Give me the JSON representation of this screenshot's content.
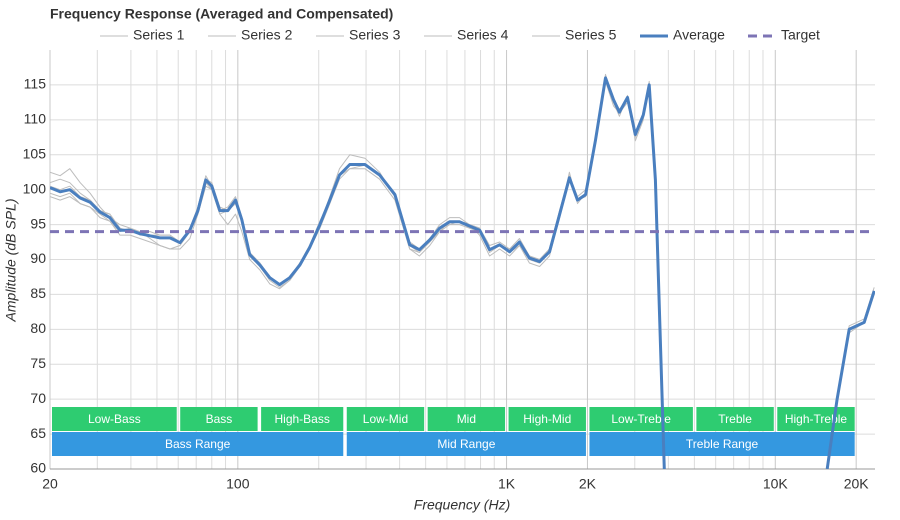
{
  "chart_data": {
    "type": "line",
    "title": "Frequency Response (Averaged and Compensated)",
    "x_label": "Frequency (Hz)",
    "y_label": "Amplitude (dB SPL)",
    "log_x": true,
    "grid": true,
    "xlim": [
      20,
      23500
    ],
    "ylim": [
      60,
      120
    ],
    "xticks": [
      20,
      100,
      {
        "value": 1000,
        "label": "1K"
      },
      {
        "value": 2000,
        "label": "2K"
      },
      {
        "value": 10000,
        "label": "10K"
      },
      {
        "value": 20000,
        "label": "20K"
      }
    ],
    "xgrid_minor": [
      30,
      40,
      50,
      60,
      70,
      80,
      90,
      200,
      300,
      400,
      500,
      600,
      700,
      800,
      900,
      3000,
      4000,
      5000,
      6000,
      7000,
      8000,
      9000
    ],
    "yticks": [
      60,
      65,
      70,
      75,
      80,
      85,
      90,
      95,
      100,
      105,
      110,
      115
    ],
    "x": [
      20,
      21.8,
      23.7,
      25.9,
      28.2,
      30.7,
      33.4,
      36.4,
      39.7,
      43.2,
      47.1,
      51.3,
      55.9,
      60.9,
      66.3,
      71,
      76,
      80,
      85.7,
      91.8,
      98,
      103.5,
      110.7,
      120.8,
      131.5,
      143,
      156,
      170,
      185,
      202,
      220,
      239,
      261,
      297,
      337,
      384,
      436,
      474,
      518,
      564,
      614,
      668,
      728,
      794,
      865,
      942,
      1026,
      1117,
      1216,
      1327,
      1445,
      1574,
      1714,
      1837,
      1968,
      2143,
      2334,
      2500,
      2630,
      2818,
      3013,
      3228,
      3396,
      3581,
      3864,
      8000,
      15600,
      16980,
      18840,
      21430,
      23340
    ],
    "series": [
      {
        "name": "Series 1",
        "color": "#bdbdbd",
        "width": 1,
        "values": [
          102.5,
          102,
          103,
          101,
          99.5,
          97.5,
          96,
          95,
          94.5,
          94,
          93,
          92,
          91.5,
          91.5,
          93,
          96.5,
          101,
          100,
          96.5,
          95,
          96.5,
          94,
          90,
          88.5,
          86.5,
          85.8,
          87,
          89,
          91.5,
          95,
          99,
          103,
          105,
          104.5,
          102.5,
          99,
          91.5,
          90.5,
          92,
          94,
          95.5,
          95.5,
          95,
          93.5,
          90.5,
          91.5,
          90.5,
          92,
          89.5,
          89,
          90.5,
          96,
          102.5,
          98,
          99.5,
          107.5,
          116.5,
          112.5,
          110.5,
          113.5,
          107,
          110,
          115.5,
          101,
          60,
          null,
          60,
          70,
          80,
          81,
          85.5
        ]
      },
      {
        "name": "Series 2",
        "color": "#bdbdbd",
        "width": 1,
        "values": [
          99,
          98.5,
          99,
          98,
          97.5,
          96,
          95.5,
          93.5,
          93.5,
          93,
          92.5,
          92,
          91.5,
          92,
          94,
          97.5,
          102,
          100.5,
          97,
          97.5,
          99,
          96,
          91,
          89.5,
          87.5,
          86.5,
          87.5,
          89.5,
          92,
          95.5,
          98.5,
          102,
          103,
          103,
          101.5,
          98.5,
          91.5,
          91,
          93,
          95,
          96,
          96,
          95,
          94.5,
          92,
          92.5,
          91.5,
          93,
          90.5,
          90,
          91.5,
          97,
          102,
          99,
          100,
          107,
          115.5,
          112,
          111,
          113,
          108,
          110.5,
          114.5,
          101.5,
          60,
          null,
          60,
          70.5,
          80.5,
          81.5,
          86
        ]
      },
      {
        "name": "Series 3",
        "color": "#bdbdbd",
        "width": 1,
        "values": [
          101,
          101.5,
          101,
          99.5,
          98.5,
          97,
          96.5,
          94.5,
          94,
          94,
          94,
          93.5,
          93.5,
          92.5,
          94.5,
          97,
          101,
          100.5,
          97.5,
          97,
          98,
          95.5,
          90.5,
          89,
          87,
          86,
          87,
          89,
          91.5,
          94.5,
          98,
          102,
          103.5,
          103.5,
          102,
          99.5,
          92.5,
          91.5,
          93,
          94.5,
          95,
          95,
          94.5,
          94,
          91,
          92,
          91,
          92.5,
          90,
          89.5,
          91,
          96.5,
          101.5,
          98.5,
          99,
          107,
          116,
          113,
          111,
          113,
          108,
          110.5,
          115,
          101,
          60,
          null,
          60,
          69.5,
          79.5,
          81,
          85
        ]
      },
      {
        "name": "Series 4",
        "color": "#bdbdbd",
        "width": 1,
        "values": [
          99.5,
          99,
          99.5,
          98,
          97.5,
          96.5,
          95.5,
          94,
          94.5,
          93.5,
          93.5,
          93,
          93,
          92.5,
          94,
          96.5,
          100.5,
          100,
          96.5,
          97,
          98,
          95.5,
          91,
          89,
          87.5,
          86.5,
          87.5,
          89,
          91.5,
          94.5,
          98,
          101.5,
          103,
          103.5,
          102,
          99,
          92,
          91,
          92.5,
          94,
          95,
          95.5,
          94.5,
          94,
          91.5,
          92,
          91,
          92,
          90,
          89.5,
          91,
          96,
          101.5,
          98.5,
          99,
          106.5,
          115.5,
          112.5,
          111,
          112.5,
          107.5,
          110.5,
          115,
          101.5,
          60,
          null,
          60,
          70,
          80,
          81,
          85.5
        ]
      },
      {
        "name": "Series 5",
        "color": "#bdbdbd",
        "width": 1,
        "values": [
          100.5,
          100,
          100.5,
          99,
          98.5,
          97,
          96.5,
          94.5,
          94,
          94,
          93.5,
          93.5,
          93.5,
          92.5,
          94.5,
          97.5,
          101.5,
          101,
          97.5,
          97,
          98.5,
          96,
          91,
          89.5,
          87.5,
          86.5,
          87.5,
          89.5,
          91.5,
          95,
          98.5,
          102,
          103.5,
          103.5,
          102,
          99.5,
          92.5,
          91.5,
          93,
          94.5,
          95.5,
          95.5,
          95,
          94.5,
          91.5,
          92,
          91.5,
          92.5,
          90.5,
          90,
          91.5,
          96.5,
          101.5,
          98.5,
          99.5,
          107,
          116,
          113,
          111.5,
          113,
          108,
          111,
          115,
          101,
          60,
          null,
          60,
          70,
          80,
          81,
          85.5
        ]
      },
      {
        "name": "Average",
        "color": "#4a7fbf",
        "width": 3,
        "values": [
          100.3,
          99.7,
          100,
          98.8,
          98.2,
          96.8,
          96,
          94.2,
          94.2,
          93.7,
          93.4,
          93.1,
          93.1,
          92.4,
          94.2,
          97,
          101.4,
          100.5,
          97,
          97,
          98.5,
          95.7,
          90.7,
          89.2,
          87.4,
          86.4,
          87.4,
          89.2,
          91.7,
          95,
          98.5,
          102.1,
          103.6,
          103.6,
          102.1,
          99.3,
          92.1,
          91.4,
          92.8,
          94.5,
          95.4,
          95.4,
          94.8,
          94.2,
          91.4,
          92.1,
          91.1,
          92.5,
          90.2,
          89.7,
          91.1,
          96.4,
          101.7,
          98.5,
          99.3,
          107.1,
          116,
          112.9,
          111.1,
          113.2,
          107.9,
          110.7,
          115,
          101.4,
          60,
          null,
          60,
          70,
          80,
          81,
          85.5
        ]
      },
      {
        "name": "Target",
        "color": "#7d74b5",
        "width": 3,
        "dashed": true,
        "x": [
          20,
          23500
        ],
        "values": [
          94,
          94
        ]
      }
    ],
    "bands": [
      {
        "label": "Low-Bass",
        "from": 20,
        "to": 60
      },
      {
        "label": "Bass",
        "from": 60,
        "to": 120
      },
      {
        "label": "High-Bass",
        "from": 120,
        "to": 250
      },
      {
        "label": "Low-Mid",
        "from": 250,
        "to": 500
      },
      {
        "label": "Mid",
        "from": 500,
        "to": 1000
      },
      {
        "label": "High-Mid",
        "from": 1000,
        "to": 2000
      },
      {
        "label": "Low-Treble",
        "from": 2000,
        "to": 5000
      },
      {
        "label": "Treble",
        "from": 5000,
        "to": 10000
      },
      {
        "label": "High-Treble",
        "from": 10000,
        "to": 20000
      }
    ],
    "band_color": "#2ecc71",
    "ranges": [
      {
        "label": "Bass Range",
        "from": 20,
        "to": 250
      },
      {
        "label": "Mid Range",
        "from": 250,
        "to": 2000
      },
      {
        "label": "Treble Range",
        "from": 2000,
        "to": 20000
      }
    ],
    "range_color": "#3498e0"
  }
}
